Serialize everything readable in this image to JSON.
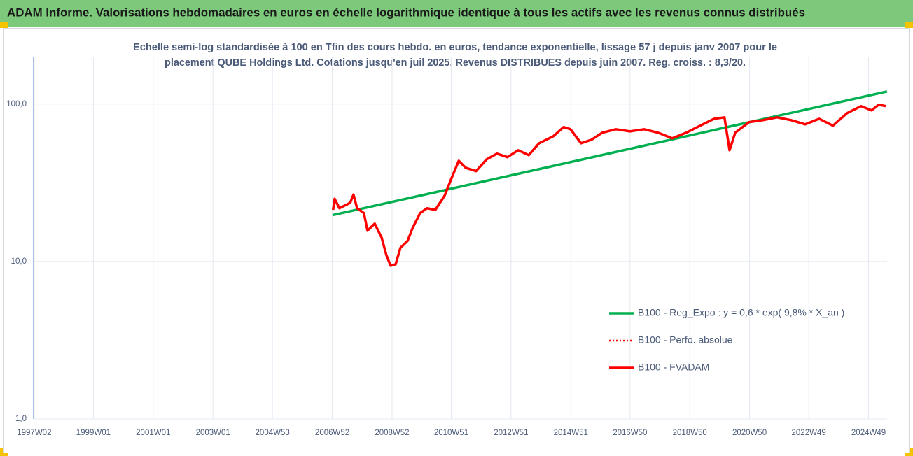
{
  "chart_data": {
    "type": "line",
    "header": "ADAM Informe. Valorisations hebdomadaires en euros en échelle logarithmique identique à tous les actifs avec les revenus connus distribués",
    "subtitle": [
      "Echelle semi-log standardisée à 100 en Tfin des cours hebdo. en euros, tendance exponentielle, lissage 57 j depuis janv 2007 pour le",
      "placement QUBE Holdings Ltd. Cotations jusqu'en juil 2025. Revenus DISTRIBUES depuis juin 2007. Reg. croiss. : 8,3/20."
    ],
    "log_scale_y": true,
    "grid": true,
    "legend_position": "right",
    "xlim": [
      1997.0,
      2025.55
    ],
    "xticks": [
      {
        "value": 1997.02,
        "label": "1997W02"
      },
      {
        "value": 1999.0,
        "label": "1999W01"
      },
      {
        "value": 2001.0,
        "label": "2001W01"
      },
      {
        "value": 2003.0,
        "label": "2003W01"
      },
      {
        "value": 2004.99,
        "label": "2004W53"
      },
      {
        "value": 2006.99,
        "label": "2006W52"
      },
      {
        "value": 2008.99,
        "label": "2008W52"
      },
      {
        "value": 2010.97,
        "label": "2010W51"
      },
      {
        "value": 2012.97,
        "label": "2012W51"
      },
      {
        "value": 2014.97,
        "label": "2014W51"
      },
      {
        "value": 2016.95,
        "label": "2016W50"
      },
      {
        "value": 2018.95,
        "label": "2018W50"
      },
      {
        "value": 2020.95,
        "label": "2020W50"
      },
      {
        "value": 2022.93,
        "label": "2022W49"
      },
      {
        "value": 2024.93,
        "label": "2024W49"
      }
    ],
    "ylim": [
      1,
      200
    ],
    "yticks": [
      {
        "value": 1,
        "label": "1,0"
      },
      {
        "value": 10,
        "label": "10,0"
      },
      {
        "value": 100,
        "label": "100,0"
      }
    ],
    "series": [
      {
        "name": "B100 - Reg_Expo : y = 0,6 * exp( 9,8% *  X_an )",
        "color": "#00b050",
        "style": "solid",
        "x": [
          2007.0,
          2025.55
        ],
        "values": [
          19.7,
          120.2
        ]
      },
      {
        "name": "B100 - Perfo. absolue",
        "color": "#ff0000",
        "style": "dotted",
        "x": [
          2007.02,
          2007.07,
          2007.23,
          2007.59,
          2007.7,
          2007.82,
          2008.05,
          2008.17,
          2008.41,
          2008.64,
          2008.8,
          2008.94,
          2009.11,
          2009.27,
          2009.51,
          2009.69,
          2009.93,
          2010.16,
          2010.44,
          2010.75,
          2010.98,
          2011.22,
          2011.45,
          2011.8,
          2012.15,
          2012.5,
          2012.85,
          2013.21,
          2013.56,
          2013.91,
          2014.38,
          2014.73,
          2014.96,
          2015.31,
          2015.66,
          2016.02,
          2016.48,
          2016.95,
          2017.42,
          2017.89,
          2018.36,
          2018.83,
          2019.3,
          2019.76,
          2020.11,
          2020.28,
          2020.47,
          2020.93,
          2021.4,
          2021.87,
          2022.34,
          2022.81,
          2023.28,
          2023.74,
          2024.21,
          2024.68,
          2025.03,
          2025.27,
          2025.5
        ],
        "values": [
          21.3,
          25,
          21.8,
          23.6,
          26.6,
          21.8,
          20.3,
          15.7,
          17.4,
          14.2,
          11.0,
          9.4,
          9.6,
          12.2,
          13.5,
          16.5,
          20.3,
          21.8,
          21.3,
          26.2,
          33.8,
          43.6,
          39.4,
          37.5,
          44.5,
          48.4,
          46,
          50.9,
          47.4,
          56.4,
          62.4,
          71.4,
          69.2,
          56.4,
          59.3,
          65.7,
          69.2,
          67,
          69.2,
          65.7,
          60.6,
          65.7,
          72.9,
          80.6,
          82.3,
          50.9,
          65.7,
          76.7,
          79,
          82.3,
          79,
          74.3,
          80.6,
          72.9,
          87.5,
          97,
          91.2,
          99,
          97
        ]
      },
      {
        "name": "B100 - FVADAM",
        "color": "#ff0000",
        "style": "solid",
        "x": [
          2007.02,
          2007.07,
          2007.23,
          2007.59,
          2007.7,
          2007.82,
          2008.05,
          2008.17,
          2008.41,
          2008.64,
          2008.8,
          2008.94,
          2009.11,
          2009.27,
          2009.51,
          2009.69,
          2009.93,
          2010.16,
          2010.44,
          2010.75,
          2010.98,
          2011.22,
          2011.45,
          2011.8,
          2012.15,
          2012.5,
          2012.85,
          2013.21,
          2013.56,
          2013.91,
          2014.38,
          2014.73,
          2014.96,
          2015.31,
          2015.66,
          2016.02,
          2016.48,
          2016.95,
          2017.42,
          2017.89,
          2018.36,
          2018.83,
          2019.3,
          2019.76,
          2020.11,
          2020.28,
          2020.47,
          2020.93,
          2021.4,
          2021.87,
          2022.34,
          2022.81,
          2023.28,
          2023.74,
          2024.21,
          2024.68,
          2025.03,
          2025.27,
          2025.5
        ],
        "values": [
          21.3,
          25,
          21.8,
          23.6,
          26.6,
          21.8,
          20.3,
          15.7,
          17.4,
          14.2,
          11.0,
          9.4,
          9.6,
          12.2,
          13.5,
          16.5,
          20.3,
          21.8,
          21.3,
          26.2,
          33.8,
          43.6,
          39.4,
          37.5,
          44.5,
          48.4,
          46,
          50.9,
          47.4,
          56.4,
          62.4,
          71.4,
          69.2,
          56.4,
          59.3,
          65.7,
          69.2,
          67,
          69.2,
          65.7,
          60.6,
          65.7,
          72.9,
          80.6,
          82.3,
          50.9,
          65.7,
          76.7,
          79,
          82.3,
          79,
          74.3,
          80.6,
          72.9,
          87.5,
          97,
          91.2,
          99,
          97
        ]
      }
    ]
  }
}
